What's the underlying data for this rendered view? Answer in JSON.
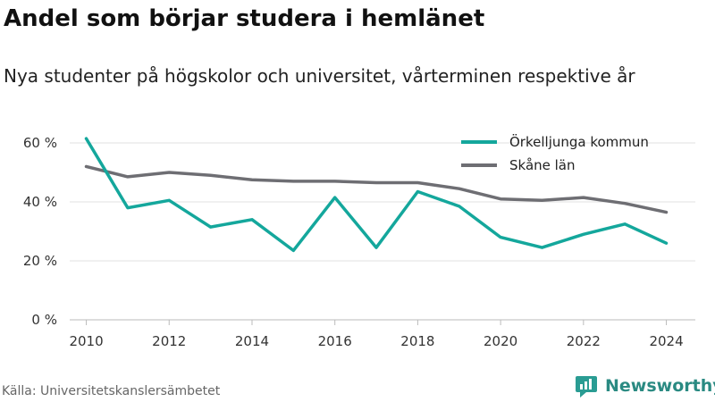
{
  "title": "Andel som börjar studera i hemlänet",
  "subtitle": "Nya studenter på högskolor och universitet, vårterminen respektive år",
  "source": "Källa: Universitetskanslersämbetet",
  "brand": {
    "name": "Newsworthy",
    "icon": "newsworthy-logo-icon",
    "color": "#2a9c93"
  },
  "chart_data": {
    "type": "line",
    "x": [
      2010,
      2011,
      2012,
      2013,
      2014,
      2015,
      2016,
      2017,
      2018,
      2019,
      2020,
      2021,
      2022,
      2023,
      2024
    ],
    "x_ticks": [
      "2010",
      "2012",
      "2014",
      "2016",
      "2018",
      "2020",
      "2022",
      "2024"
    ],
    "y_ticks": [
      "0 %",
      "20 %",
      "40 %",
      "60 %"
    ],
    "ylim": [
      0,
      60
    ],
    "grid": true,
    "legend_position": "top-right",
    "series": [
      {
        "name": "Örkelljunga kommun",
        "color": "#14a79c",
        "values": [
          61.5,
          38,
          40.5,
          31.5,
          34,
          23.5,
          41.5,
          24.5,
          43.5,
          38.5,
          28,
          24.5,
          29,
          32.5,
          26
        ]
      },
      {
        "name": "Skåne län",
        "color": "#6e6e73",
        "values": [
          52,
          48.5,
          50,
          49,
          47.5,
          47,
          47,
          46.5,
          46.5,
          44.5,
          41,
          40.5,
          41.5,
          39.5,
          36.5
        ]
      }
    ]
  }
}
